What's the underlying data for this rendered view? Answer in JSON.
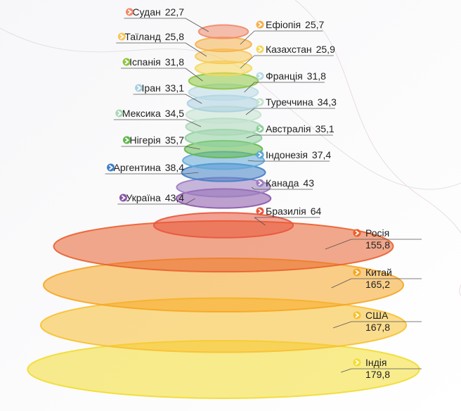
{
  "chart_data": {
    "type": "disc-stack",
    "categories": [
      "Судан",
      "Ефіопія",
      "Таїланд",
      "Казахстан",
      "Іспанія",
      "Франція",
      "Іран",
      "Туреччина",
      "Мексика",
      "Австралія",
      "Нігерія",
      "Індонезія",
      "Аргентина",
      "Канада",
      "Україна",
      "Бразилія",
      "Росія",
      "Китай",
      "США",
      "Індія"
    ],
    "values": [
      22.7,
      25.7,
      25.8,
      25.9,
      31.8,
      31.8,
      33.1,
      34.3,
      34.5,
      35.1,
      35.7,
      37.4,
      38.4,
      43,
      43.4,
      64,
      155.8,
      165.2,
      167.8,
      179.8
    ],
    "value_labels": [
      "22,7",
      "25,7",
      "25,8",
      "25,9",
      "31,8",
      "31,8",
      "33,1",
      "34,3",
      "34,5",
      "35,1",
      "35,7",
      "37,4",
      "38,4",
      "43",
      "43,4",
      "64",
      "155,8",
      "165,2",
      "167,8",
      "179,8"
    ],
    "colors": [
      "#f08a6a",
      "#f5b04a",
      "#f7c85a",
      "#f5d75a",
      "#8dc63f",
      "#b9dbe6",
      "#a9cfe0",
      "#c3e2cf",
      "#aad7b6",
      "#8ecf9c",
      "#5fb84a",
      "#5ea8d8",
      "#3f7fc4",
      "#9b7cc0",
      "#8a55a8",
      "#e9553a",
      "#e8602e",
      "#f5a623",
      "#f8c030",
      "#f2dc30"
    ]
  }
}
